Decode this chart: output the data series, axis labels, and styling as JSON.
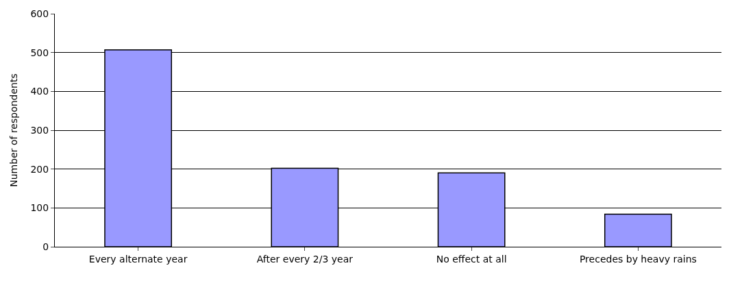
{
  "chart_data": {
    "type": "bar",
    "ylabel": "Number of respondents",
    "categories": [
      "Every alternate year",
      "After every 2/3 year",
      "No effect at all",
      "Precedes by heavy rains"
    ],
    "values": [
      507,
      202,
      190,
      84
    ],
    "color": "#9999ff",
    "ylim": [
      0,
      600
    ],
    "yticks": [
      0,
      100,
      200,
      300,
      400,
      500,
      600
    ],
    "grid": "y"
  }
}
